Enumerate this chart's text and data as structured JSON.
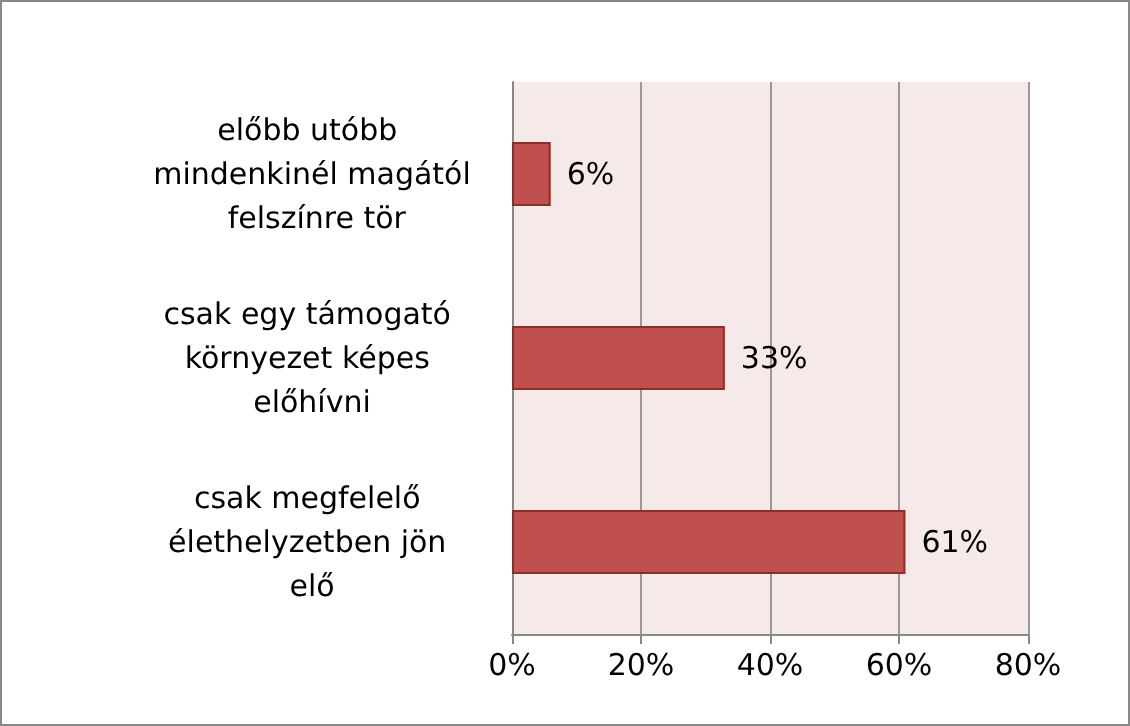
{
  "chart_data": {
    "type": "bar",
    "orientation": "horizontal",
    "categories": [
      "előbb utóbb mindenkinél magától felszínre tör",
      "csak egy támogató környezet képes előhívni",
      "csak megfelelő élethelyzetben jön elő"
    ],
    "values": [
      6,
      33,
      61
    ],
    "color": "#c0504d",
    "value_labels": [
      "6%",
      "33%",
      "61%"
    ],
    "xlim": [
      0,
      80
    ],
    "xticks": [
      {
        "value": 0,
        "label": "0%"
      },
      {
        "value": 20,
        "label": "20%"
      },
      {
        "value": 40,
        "label": "40%"
      },
      {
        "value": 60,
        "label": "60%"
      },
      {
        "value": 80,
        "label": "80%"
      }
    ],
    "grid": "x"
  }
}
